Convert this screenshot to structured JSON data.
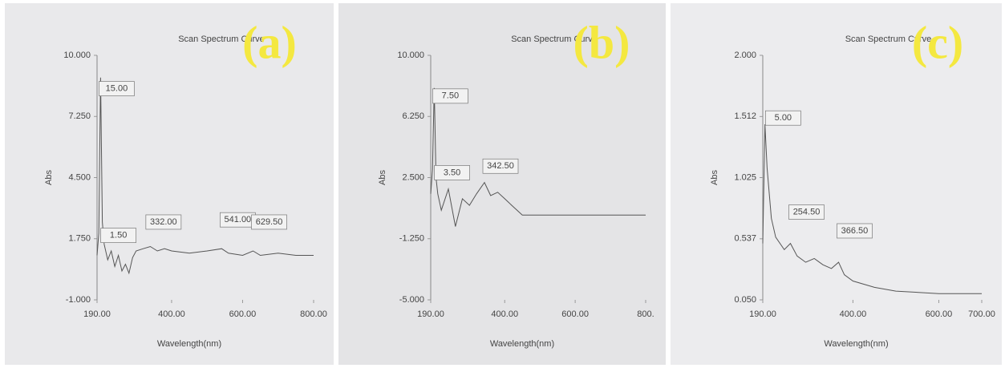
{
  "chart_data": [
    {
      "type": "line",
      "panel": "(a)",
      "title": "Scan Spectrum Curve",
      "xlabel": "Wavelength(nm)",
      "ylabel": "Abs",
      "xlim": [
        190,
        800
      ],
      "xticks": [
        {
          "value": 190,
          "label": "190.00"
        },
        {
          "value": 400,
          "label": "400.00"
        },
        {
          "value": 600,
          "label": "600.00"
        },
        {
          "value": 800,
          "label": "800.00"
        }
      ],
      "ylim": [
        -1,
        10
      ],
      "yticks": [
        {
          "value": -1,
          "label": "-1.000"
        },
        {
          "value": 1.75,
          "label": "1.750"
        },
        {
          "value": 4.5,
          "label": "4.500"
        },
        {
          "value": 7.25,
          "label": "7.250"
        },
        {
          "value": 10,
          "label": "10.000"
        }
      ],
      "series": [
        {
          "color": "#555555",
          "x": [
            190,
            195,
            200,
            205,
            210,
            220,
            230,
            240,
            250,
            260,
            270,
            280,
            290,
            300,
            320,
            340,
            360,
            380,
            400,
            450,
            500,
            541,
            560,
            600,
            629.5,
            650,
            700,
            750,
            800
          ],
          "values": [
            1.0,
            2.0,
            9.0,
            2.5,
            1.5,
            0.8,
            1.2,
            0.5,
            1.0,
            0.3,
            0.6,
            0.2,
            0.9,
            1.2,
            1.3,
            1.4,
            1.2,
            1.3,
            1.2,
            1.1,
            1.2,
            1.3,
            1.1,
            1.0,
            1.2,
            1.0,
            1.1,
            1.0,
            1.0
          ]
        }
      ],
      "annotations": [
        {
          "label": "15.00",
          "x": 200,
          "y": 8.5
        },
        {
          "label": "1.50",
          "x": 205,
          "y": 1.9
        },
        {
          "label": "332.00",
          "x": 332,
          "y": 2.5
        },
        {
          "label": "541.00",
          "x": 541,
          "y": 2.6
        },
        {
          "label": "629.50",
          "x": 629.5,
          "y": 2.5
        }
      ]
    },
    {
      "type": "line",
      "panel": "(b)",
      "title": "Scan Spectrum Curve",
      "xlabel": "Wavelength(nm)",
      "ylabel": "Abs",
      "xlim": [
        190,
        800
      ],
      "xticks": [
        {
          "value": 190,
          "label": "190.00"
        },
        {
          "value": 400,
          "label": "400.00"
        },
        {
          "value": 600,
          "label": "600.00"
        },
        {
          "value": 800,
          "label": "800."
        }
      ],
      "ylim": [
        -5,
        10
      ],
      "yticks": [
        {
          "value": -5,
          "label": "-5.000"
        },
        {
          "value": -1.25,
          "label": "-1.250"
        },
        {
          "value": 2.5,
          "label": "2.500"
        },
        {
          "value": 6.25,
          "label": "6.250"
        },
        {
          "value": 10,
          "label": "10.000"
        }
      ],
      "series": [
        {
          "color": "#555555",
          "x": [
            190,
            195,
            200,
            205,
            210,
            220,
            240,
            260,
            280,
            300,
            320,
            342.5,
            360,
            380,
            400,
            420,
            450,
            500,
            550,
            600,
            650,
            700,
            750,
            800
          ],
          "values": [
            1.5,
            3.0,
            8.0,
            2.5,
            1.5,
            0.5,
            1.8,
            -0.5,
            1.2,
            0.8,
            1.5,
            2.2,
            1.4,
            1.6,
            1.2,
            0.8,
            0.2,
            0.2,
            0.2,
            0.2,
            0.2,
            0.2,
            0.2,
            0.2
          ]
        }
      ],
      "annotations": [
        {
          "label": "7.50",
          "x": 200,
          "y": 7.5
        },
        {
          "label": "3.50",
          "x": 205,
          "y": 2.8
        },
        {
          "label": "342.50",
          "x": 342.5,
          "y": 3.2
        }
      ]
    },
    {
      "type": "line",
      "panel": "(c)",
      "title": "Scan Spectrum Curve",
      "xlabel": "Wavelength(nm)",
      "ylabel": "Abs",
      "xlim": [
        190,
        700
      ],
      "xticks": [
        {
          "value": 190,
          "label": "190.00"
        },
        {
          "value": 400,
          "label": "400.00"
        },
        {
          "value": 600,
          "label": "600.00"
        },
        {
          "value": 700,
          "label": "700.00"
        }
      ],
      "ylim": [
        0.05,
        2.0
      ],
      "yticks": [
        {
          "value": 0.05,
          "label": "0.050"
        },
        {
          "value": 0.537,
          "label": "0.537"
        },
        {
          "value": 1.025,
          "label": "1.025"
        },
        {
          "value": 1.512,
          "label": "1.512"
        },
        {
          "value": 2.0,
          "label": "2.000"
        }
      ],
      "series": [
        {
          "color": "#555555",
          "x": [
            190,
            195,
            200,
            210,
            220,
            240,
            254.5,
            270,
            290,
            310,
            330,
            350,
            366.5,
            380,
            400,
            450,
            500,
            600,
            700
          ],
          "values": [
            0.5,
            1.45,
            1.1,
            0.7,
            0.55,
            0.45,
            0.5,
            0.4,
            0.35,
            0.38,
            0.33,
            0.3,
            0.35,
            0.25,
            0.2,
            0.15,
            0.12,
            0.1,
            0.1
          ]
        }
      ],
      "annotations": [
        {
          "label": "5.00",
          "x": 200,
          "y": 1.5
        },
        {
          "label": "254.50",
          "x": 254.5,
          "y": 0.75
        },
        {
          "label": "366.50",
          "x": 366.5,
          "y": 0.6
        }
      ]
    }
  ]
}
